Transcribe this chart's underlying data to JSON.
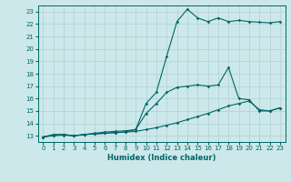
{
  "xlabel": "Humidex (Indice chaleur)",
  "ylabel": "",
  "background_color": "#cce8ea",
  "grid_color": "#b0d0d4",
  "line_color": "#006666",
  "xlim": [
    -0.5,
    23.5
  ],
  "ylim": [
    12.5,
    23.5
  ],
  "xticks": [
    0,
    1,
    2,
    3,
    4,
    5,
    6,
    7,
    8,
    9,
    10,
    11,
    12,
    13,
    14,
    15,
    16,
    17,
    18,
    19,
    20,
    21,
    22,
    23
  ],
  "yticks": [
    13,
    14,
    15,
    16,
    17,
    18,
    19,
    20,
    21,
    22,
    23
  ],
  "line1_x": [
    0,
    1,
    2,
    3,
    4,
    5,
    6,
    7,
    8,
    9,
    10,
    11,
    12,
    13,
    14,
    15,
    16,
    17,
    18,
    19,
    20,
    21,
    22,
    23
  ],
  "line1_y": [
    12.9,
    13.0,
    13.05,
    13.0,
    13.1,
    13.15,
    13.2,
    13.25,
    13.3,
    13.35,
    13.5,
    13.65,
    13.85,
    14.05,
    14.3,
    14.55,
    14.8,
    15.1,
    15.4,
    15.6,
    15.8,
    15.1,
    15.0,
    15.25
  ],
  "line2_x": [
    0,
    1,
    2,
    3,
    4,
    5,
    6,
    7,
    8,
    9,
    10,
    11,
    12,
    13,
    14,
    15,
    16,
    17,
    18,
    19,
    20,
    21,
    22,
    23
  ],
  "line2_y": [
    12.9,
    13.05,
    13.1,
    13.0,
    13.1,
    13.15,
    13.2,
    13.25,
    13.3,
    13.5,
    14.8,
    15.6,
    16.5,
    16.9,
    17.0,
    17.1,
    17.0,
    17.1,
    18.5,
    16.0,
    15.9,
    15.0,
    15.0,
    15.25
  ],
  "line3_x": [
    0,
    1,
    2,
    3,
    4,
    5,
    6,
    7,
    8,
    9,
    10,
    11,
    12,
    13,
    14,
    15,
    16,
    17,
    18,
    19,
    20,
    21,
    22,
    23
  ],
  "line3_y": [
    12.9,
    13.1,
    13.1,
    13.0,
    13.1,
    13.2,
    13.3,
    13.35,
    13.4,
    13.5,
    15.6,
    16.5,
    19.4,
    22.2,
    23.2,
    22.5,
    22.2,
    22.5,
    22.2,
    22.3,
    22.2,
    22.15,
    22.1,
    22.2
  ]
}
